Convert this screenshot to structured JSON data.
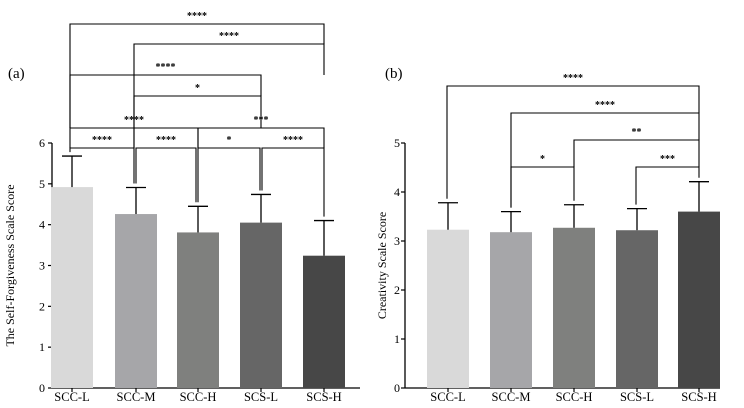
{
  "chart_data": [
    {
      "type": "bar",
      "panel_label": "(a)",
      "ylabel": "The Self-Forgiveness Scale Score",
      "ylim": [
        0,
        6
      ],
      "yticks": [
        "0",
        "1",
        "2",
        "3",
        "4",
        "5",
        "6"
      ],
      "categories": [
        "SCC-L",
        "SCC-M",
        "SCC-H",
        "SCS-L",
        "SCS-H"
      ],
      "values": [
        4.92,
        4.26,
        3.81,
        4.05,
        3.24
      ],
      "errors": [
        0.76,
        0.65,
        0.64,
        0.69,
        0.86
      ],
      "colors": [
        "#d9d9d9",
        "#a6a6a9",
        "#7f807e",
        "#666666",
        "#474747"
      ],
      "comparisons": [
        {
          "from": "SCC-L",
          "to": "SCS-H",
          "label": "****"
        },
        {
          "from": "SCC-M",
          "to": "SCS-H",
          "label": "****"
        },
        {
          "from": "SCC-L",
          "to": "SCS-L",
          "label": "****"
        },
        {
          "from": "SCC-M",
          "to": "SCS-L",
          "label": "*"
        },
        {
          "from": "SCC-L",
          "to": "SCC-H",
          "label": "****"
        },
        {
          "from": "SCC-H",
          "to": "SCS-H",
          "label": "***"
        },
        {
          "from": "SCC-L",
          "to": "SCC-M",
          "label": "****"
        },
        {
          "from": "SCC-M",
          "to": "SCC-H",
          "label": "****"
        },
        {
          "from": "SCC-H",
          "to": "SCS-L",
          "label": "*"
        },
        {
          "from": "SCS-L",
          "to": "SCS-H",
          "label": "****"
        }
      ]
    },
    {
      "type": "bar",
      "panel_label": "(b)",
      "ylabel": "Creativity Scale Score",
      "ylim": [
        0,
        5
      ],
      "yticks": [
        "0",
        "1",
        "2",
        "3",
        "4",
        "5"
      ],
      "categories": [
        "SCC-L",
        "SCC-M",
        "SCC-H",
        "SCS-L",
        "SCS-H"
      ],
      "values": [
        3.23,
        3.18,
        3.27,
        3.22,
        3.6
      ],
      "errors": [
        0.55,
        0.42,
        0.47,
        0.44,
        0.61
      ],
      "colors": [
        "#d9d9d9",
        "#a6a6a9",
        "#7f807e",
        "#666666",
        "#474747"
      ],
      "comparisons": [
        {
          "from": "SCC-L",
          "to": "SCS-H",
          "label": "****"
        },
        {
          "from": "SCC-M",
          "to": "SCS-H",
          "label": "****"
        },
        {
          "from": "SCC-H",
          "to": "SCS-H",
          "label": "**"
        },
        {
          "from": "SCC-M",
          "to": "SCC-H",
          "label": "*"
        },
        {
          "from": "SCS-L",
          "to": "SCS-H",
          "label": "***"
        }
      ]
    }
  ]
}
